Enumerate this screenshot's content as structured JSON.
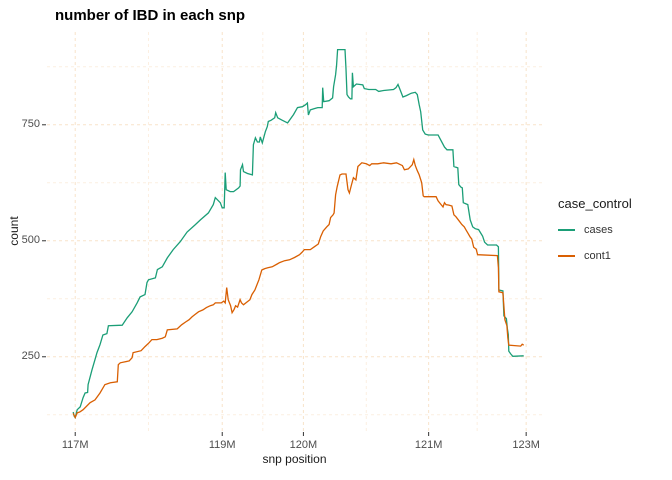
{
  "title": "number of IBD in each snp",
  "chart_data": {
    "type": "line",
    "title": "number of IBD in each snp",
    "xlabel": "snp position",
    "ylabel": "count",
    "legend_title": "case_control",
    "legend_position": "right",
    "grid": {
      "style": "dashed",
      "major_color": "#f8e3ca",
      "minor_color": "#fcefe1"
    },
    "axis_text_color": "#4d4d4d",
    "tick_mark_color": "#333333",
    "y_axis": {
      "range": [
        90,
        950
      ],
      "ticks": [
        250,
        500,
        750
      ],
      "minor_ticks": [
        125,
        375,
        625,
        875
      ]
    },
    "x_axis": {
      "note": "snp index scale labeled with genomic positions; tick positions are fractions of panel width",
      "ticks": [
        {
          "label": "117M",
          "pos": 0.057
        },
        {
          "label": "119M",
          "pos": 0.354
        },
        {
          "label": "120M",
          "pos": 0.518
        },
        {
          "label": "121M",
          "pos": 0.771
        },
        {
          "label": "123M",
          "pos": 0.968
        }
      ],
      "minor_pos": [
        0.205,
        0.436,
        0.645,
        0.869
      ]
    },
    "series": [
      {
        "name": "cases",
        "color": "#1b9e77",
        "points": [
          [
            0.053,
            131
          ],
          [
            0.055,
            122
          ],
          [
            0.057,
            119
          ],
          [
            0.061,
            136
          ],
          [
            0.067,
            142
          ],
          [
            0.073,
            162
          ],
          [
            0.077,
            172
          ],
          [
            0.082,
            173
          ],
          [
            0.083,
            190
          ],
          [
            0.091,
            222
          ],
          [
            0.097,
            244
          ],
          [
            0.101,
            259
          ],
          [
            0.107,
            276
          ],
          [
            0.113,
            297
          ],
          [
            0.121,
            300
          ],
          [
            0.124,
            317
          ],
          [
            0.152,
            318
          ],
          [
            0.162,
            334
          ],
          [
            0.172,
            347
          ],
          [
            0.182,
            366
          ],
          [
            0.188,
            379
          ],
          [
            0.198,
            384
          ],
          [
            0.202,
            410
          ],
          [
            0.205,
            416
          ],
          [
            0.219,
            420
          ],
          [
            0.223,
            438
          ],
          [
            0.233,
            444
          ],
          [
            0.243,
            463
          ],
          [
            0.255,
            481
          ],
          [
            0.269,
            498
          ],
          [
            0.283,
            519
          ],
          [
            0.3,
            535
          ],
          [
            0.31,
            545
          ],
          [
            0.326,
            560
          ],
          [
            0.336,
            578
          ],
          [
            0.34,
            593
          ],
          [
            0.35,
            582
          ],
          [
            0.354,
            571
          ],
          [
            0.358,
            571
          ],
          [
            0.36,
            647
          ],
          [
            0.362,
            610
          ],
          [
            0.37,
            606
          ],
          [
            0.377,
            606
          ],
          [
            0.387,
            614
          ],
          [
            0.39,
            618
          ],
          [
            0.391,
            653
          ],
          [
            0.395,
            664
          ],
          [
            0.397,
            649
          ],
          [
            0.405,
            645
          ],
          [
            0.415,
            642
          ],
          [
            0.417,
            707
          ],
          [
            0.421,
            722
          ],
          [
            0.425,
            713
          ],
          [
            0.429,
            713
          ],
          [
            0.431,
            724
          ],
          [
            0.435,
            711
          ],
          [
            0.441,
            735
          ],
          [
            0.445,
            746
          ],
          [
            0.447,
            757
          ],
          [
            0.453,
            760
          ],
          [
            0.46,
            765
          ],
          [
            0.462,
            776
          ],
          [
            0.466,
            765
          ],
          [
            0.475,
            760
          ],
          [
            0.486,
            754
          ],
          [
            0.498,
            772
          ],
          [
            0.506,
            787
          ],
          [
            0.516,
            789
          ],
          [
            0.522,
            793
          ],
          [
            0.526,
            797
          ],
          [
            0.528,
            771
          ],
          [
            0.532,
            782
          ],
          [
            0.54,
            785
          ],
          [
            0.547,
            787
          ],
          [
            0.556,
            787
          ],
          [
            0.557,
            830
          ],
          [
            0.559,
            800
          ],
          [
            0.57,
            802
          ],
          [
            0.577,
            808
          ],
          [
            0.579,
            832
          ],
          [
            0.583,
            858
          ],
          [
            0.585,
            879
          ],
          [
            0.587,
            912
          ],
          [
            0.602,
            912
          ],
          [
            0.604,
            870
          ],
          [
            0.606,
            815
          ],
          [
            0.609,
            810
          ],
          [
            0.613,
            806
          ],
          [
            0.616,
            806
          ],
          [
            0.617,
            862
          ],
          [
            0.619,
            832
          ],
          [
            0.625,
            838
          ],
          [
            0.638,
            836
          ],
          [
            0.641,
            828
          ],
          [
            0.65,
            826
          ],
          [
            0.664,
            826
          ],
          [
            0.67,
            822
          ],
          [
            0.68,
            824
          ],
          [
            0.7,
            826
          ],
          [
            0.705,
            830
          ],
          [
            0.709,
            837
          ],
          [
            0.714,
            824
          ],
          [
            0.719,
            810
          ],
          [
            0.726,
            813
          ],
          [
            0.736,
            818
          ],
          [
            0.744,
            820
          ],
          [
            0.748,
            815
          ],
          [
            0.752,
            793
          ],
          [
            0.755,
            778
          ],
          [
            0.759,
            739
          ],
          [
            0.764,
            730
          ],
          [
            0.77,
            728
          ],
          [
            0.79,
            728
          ],
          [
            0.795,
            718
          ],
          [
            0.803,
            702
          ],
          [
            0.808,
            696
          ],
          [
            0.82,
            696
          ],
          [
            0.822,
            660
          ],
          [
            0.83,
            657
          ],
          [
            0.832,
            621
          ],
          [
            0.836,
            616
          ],
          [
            0.839,
            614
          ],
          [
            0.841,
            582
          ],
          [
            0.85,
            578
          ],
          [
            0.855,
            545
          ],
          [
            0.86,
            530
          ],
          [
            0.865,
            526
          ],
          [
            0.872,
            524
          ],
          [
            0.88,
            510
          ],
          [
            0.884,
            497
          ],
          [
            0.89,
            491
          ],
          [
            0.908,
            491
          ],
          [
            0.912,
            487
          ],
          [
            0.913,
            394
          ],
          [
            0.921,
            392
          ],
          [
            0.923,
            338
          ],
          [
            0.928,
            332
          ],
          [
            0.93,
            310
          ],
          [
            0.932,
            298
          ],
          [
            0.933,
            262
          ],
          [
            0.937,
            256
          ],
          [
            0.941,
            251
          ],
          [
            0.963,
            252
          ]
        ]
      },
      {
        "name": "cont1",
        "color": "#d95f02",
        "points": [
          [
            0.053,
            128
          ],
          [
            0.057,
            119
          ],
          [
            0.061,
            129
          ],
          [
            0.066,
            131
          ],
          [
            0.073,
            136
          ],
          [
            0.087,
            151
          ],
          [
            0.097,
            157
          ],
          [
            0.107,
            172
          ],
          [
            0.117,
            190
          ],
          [
            0.128,
            194
          ],
          [
            0.142,
            196
          ],
          [
            0.144,
            233
          ],
          [
            0.148,
            237
          ],
          [
            0.166,
            241
          ],
          [
            0.172,
            248
          ],
          [
            0.174,
            259
          ],
          [
            0.19,
            263
          ],
          [
            0.198,
            272
          ],
          [
            0.206,
            280
          ],
          [
            0.212,
            287
          ],
          [
            0.222,
            287
          ],
          [
            0.233,
            290
          ],
          [
            0.239,
            293
          ],
          [
            0.243,
            308
          ],
          [
            0.263,
            310
          ],
          [
            0.272,
            319
          ],
          [
            0.28,
            325
          ],
          [
            0.287,
            330
          ],
          [
            0.293,
            336
          ],
          [
            0.299,
            341
          ],
          [
            0.306,
            347
          ],
          [
            0.315,
            351
          ],
          [
            0.322,
            356
          ],
          [
            0.33,
            360
          ],
          [
            0.336,
            362
          ],
          [
            0.34,
            366
          ],
          [
            0.352,
            366
          ],
          [
            0.357,
            370
          ],
          [
            0.36,
            366
          ],
          [
            0.363,
            399
          ],
          [
            0.366,
            373
          ],
          [
            0.371,
            360
          ],
          [
            0.374,
            345
          ],
          [
            0.378,
            352
          ],
          [
            0.381,
            360
          ],
          [
            0.385,
            357
          ],
          [
            0.39,
            373
          ],
          [
            0.393,
            366
          ],
          [
            0.397,
            362
          ],
          [
            0.404,
            368
          ],
          [
            0.41,
            373
          ],
          [
            0.414,
            384
          ],
          [
            0.42,
            394
          ],
          [
            0.424,
            405
          ],
          [
            0.428,
            416
          ],
          [
            0.434,
            437
          ],
          [
            0.44,
            440
          ],
          [
            0.446,
            442
          ],
          [
            0.455,
            444
          ],
          [
            0.465,
            450
          ],
          [
            0.47,
            453
          ],
          [
            0.48,
            457
          ],
          [
            0.49,
            459
          ],
          [
            0.5,
            464
          ],
          [
            0.51,
            470
          ],
          [
            0.515,
            475
          ],
          [
            0.52,
            481
          ],
          [
            0.532,
            481
          ],
          [
            0.54,
            487
          ],
          [
            0.548,
            493
          ],
          [
            0.553,
            509
          ],
          [
            0.558,
            521
          ],
          [
            0.565,
            530
          ],
          [
            0.57,
            535
          ],
          [
            0.573,
            550
          ],
          [
            0.578,
            556
          ],
          [
            0.58,
            560
          ],
          [
            0.583,
            599
          ],
          [
            0.586,
            616
          ],
          [
            0.588,
            625
          ],
          [
            0.592,
            642
          ],
          [
            0.596,
            644
          ],
          [
            0.604,
            644
          ],
          [
            0.608,
            610
          ],
          [
            0.611,
            603
          ],
          [
            0.615,
            620
          ],
          [
            0.619,
            636
          ],
          [
            0.624,
            631
          ],
          [
            0.628,
            660
          ],
          [
            0.636,
            668
          ],
          [
            0.645,
            666
          ],
          [
            0.652,
            662
          ],
          [
            0.656,
            666
          ],
          [
            0.668,
            666
          ],
          [
            0.68,
            668
          ],
          [
            0.695,
            666
          ],
          [
            0.706,
            668
          ],
          [
            0.718,
            662
          ],
          [
            0.722,
            653
          ],
          [
            0.73,
            655
          ],
          [
            0.738,
            664
          ],
          [
            0.741,
            675
          ],
          [
            0.744,
            662
          ],
          [
            0.748,
            651
          ],
          [
            0.752,
            642
          ],
          [
            0.757,
            625
          ],
          [
            0.76,
            597
          ],
          [
            0.762,
            595
          ],
          [
            0.786,
            595
          ],
          [
            0.79,
            586
          ],
          [
            0.797,
            577
          ],
          [
            0.8,
            573
          ],
          [
            0.803,
            582
          ],
          [
            0.806,
            578
          ],
          [
            0.812,
            577
          ],
          [
            0.818,
            575
          ],
          [
            0.822,
            556
          ],
          [
            0.826,
            552
          ],
          [
            0.834,
            541
          ],
          [
            0.838,
            535
          ],
          [
            0.843,
            530
          ],
          [
            0.846,
            524
          ],
          [
            0.85,
            517
          ],
          [
            0.855,
            508
          ],
          [
            0.858,
            504
          ],
          [
            0.862,
            486
          ],
          [
            0.867,
            482
          ],
          [
            0.87,
            470
          ],
          [
            0.91,
            468
          ],
          [
            0.912,
            442
          ],
          [
            0.913,
            390
          ],
          [
            0.921,
            388
          ],
          [
            0.925,
            330
          ],
          [
            0.929,
            317
          ],
          [
            0.931,
            291
          ],
          [
            0.933,
            275
          ],
          [
            0.957,
            273
          ],
          [
            0.96,
            277
          ],
          [
            0.963,
            275
          ]
        ]
      }
    ]
  },
  "legend": {
    "title": "case_control",
    "items": [
      {
        "label": "cases",
        "color": "#1b9e77"
      },
      {
        "label": "cont1",
        "color": "#d95f02"
      }
    ]
  }
}
